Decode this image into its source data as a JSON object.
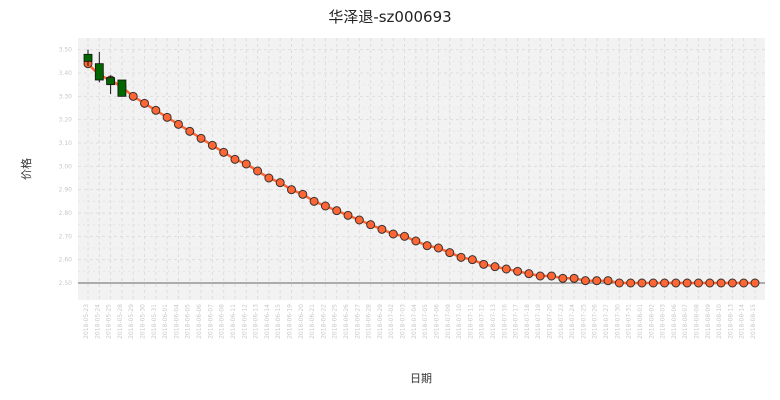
{
  "chart_data": {
    "type": "line",
    "title": "华泽退-sz000693",
    "xlabel": "日期",
    "ylabel": "价格",
    "ylim": [
      2.5,
      3.55
    ],
    "grid": true,
    "y_ticks": [
      2.5,
      2.6,
      2.7,
      2.8,
      2.9,
      3.0,
      3.1,
      3.2,
      3.3,
      3.4,
      3.5
    ],
    "categories": [
      "2018-05-23",
      "2018-05-24",
      "2018-05-25",
      "2018-05-28",
      "2018-05-29",
      "2018-05-30",
      "2018-05-31",
      "2018-06-01",
      "2018-06-04",
      "2018-06-05",
      "2018-06-06",
      "2018-06-07",
      "2018-06-08",
      "2018-06-11",
      "2018-06-12",
      "2018-06-13",
      "2018-06-14",
      "2018-06-15",
      "2018-06-19",
      "2018-06-20",
      "2018-06-21",
      "2018-06-22",
      "2018-06-25",
      "2018-06-26",
      "2018-06-27",
      "2018-06-28",
      "2018-06-29",
      "2018-07-02",
      "2018-07-03",
      "2018-07-04",
      "2018-07-05",
      "2018-07-06",
      "2018-07-09",
      "2018-07-10",
      "2018-07-11",
      "2018-07-12",
      "2018-07-13",
      "2018-07-16",
      "2018-07-17",
      "2018-07-18",
      "2018-07-19",
      "2018-07-20",
      "2018-07-23",
      "2018-07-24",
      "2018-07-25",
      "2018-07-26",
      "2018-07-27",
      "2018-07-30",
      "2018-07-31",
      "2018-08-01",
      "2018-08-02",
      "2018-08-03",
      "2018-08-06",
      "2018-08-07",
      "2018-08-08",
      "2018-08-09",
      "2018-08-10",
      "2018-08-13",
      "2018-08-14",
      "2018-08-15"
    ],
    "series": [
      {
        "type": "line",
        "color": "#ff6633",
        "values": [
          3.44,
          3.39,
          3.37,
          3.34,
          3.3,
          3.27,
          3.24,
          3.21,
          3.18,
          3.15,
          3.12,
          3.09,
          3.06,
          3.03,
          3.01,
          2.98,
          2.95,
          2.93,
          2.9,
          2.88,
          2.85,
          2.83,
          2.81,
          2.79,
          2.77,
          2.75,
          2.73,
          2.71,
          2.7,
          2.68,
          2.66,
          2.65,
          2.63,
          2.61,
          2.6,
          2.58,
          2.57,
          2.56,
          2.55,
          2.54,
          2.53,
          2.53,
          2.52,
          2.52,
          2.51,
          2.51,
          2.51,
          2.5,
          2.5,
          2.5,
          2.5,
          2.5,
          2.5,
          2.5,
          2.5,
          2.5,
          2.5,
          2.5,
          2.5,
          2.5
        ]
      },
      {
        "type": "candlestick",
        "up_color": "#006600",
        "down_color": "#006600",
        "candles": [
          {
            "open": 3.48,
            "close": 3.45,
            "high": 3.5,
            "low": 3.43
          },
          {
            "open": 3.44,
            "close": 3.37,
            "high": 3.49,
            "low": 3.36
          },
          {
            "open": 3.38,
            "close": 3.35,
            "high": 3.39,
            "low": 3.31
          },
          {
            "open": 3.37,
            "close": 3.3,
            "high": 3.37,
            "low": 3.3
          }
        ]
      }
    ],
    "colors": {
      "line": "#ff6633",
      "marker_edge": "#333333",
      "candle": "#006600",
      "plot_bg": "#f2f2f2",
      "grid": "#dddddd"
    }
  }
}
